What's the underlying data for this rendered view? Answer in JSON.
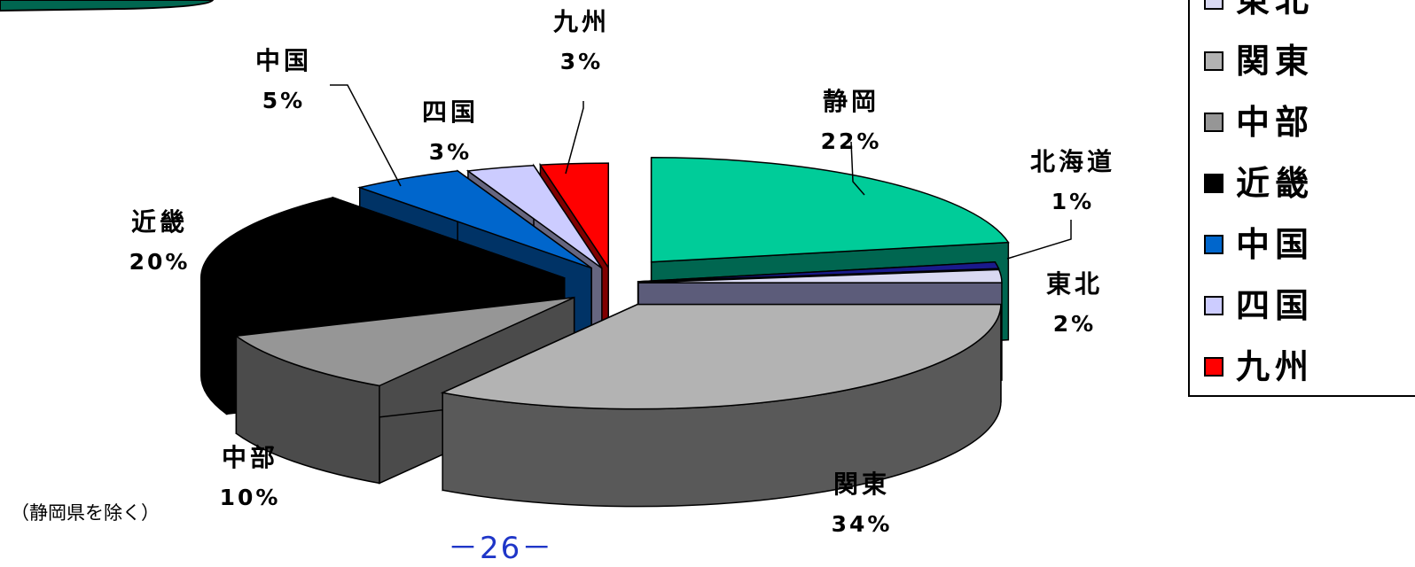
{
  "chart_data": {
    "type": "pie",
    "title": "",
    "slices": [
      {
        "label": "静岡",
        "pct_label": "22%",
        "value": 22,
        "color": "#00cc99",
        "side": "#006650"
      },
      {
        "label": "北海道",
        "pct_label": "1%",
        "value": 1,
        "color": "#1a1a8c",
        "side": "#0d0d55"
      },
      {
        "label": "東北",
        "pct_label": "2%",
        "value": 2,
        "color": "#d9d9f2",
        "side": "#5c5c7a"
      },
      {
        "label": "関東",
        "pct_label": "34%",
        "value": 34,
        "color": "#b3b3b3",
        "side": "#595959"
      },
      {
        "label": "中部",
        "pct_label": "10%",
        "value": 10,
        "color": "#969696",
        "side": "#4b4b4b"
      },
      {
        "label": "近畿",
        "pct_label": "20%",
        "value": 20,
        "color": "#000000",
        "side": "#000000"
      },
      {
        "label": "中国",
        "pct_label": "5%",
        "value": 5,
        "color": "#0066cc",
        "side": "#003366"
      },
      {
        "label": "四国",
        "pct_label": "3%",
        "value": 3,
        "color": "#ccccff",
        "side": "#666680"
      },
      {
        "label": "九州",
        "pct_label": "3%",
        "value": 3,
        "color": "#ff0000",
        "side": "#800000"
      }
    ],
    "legend": [
      {
        "label": "東北",
        "color": "#d9d9f2"
      },
      {
        "label": "関東",
        "color": "#b3b3b3"
      },
      {
        "label": "中部",
        "color": "#969696"
      },
      {
        "label": "近畿",
        "color": "#000000"
      },
      {
        "label": "中国",
        "color": "#0066cc"
      },
      {
        "label": "四国",
        "color": "#ccccff"
      },
      {
        "label": "九州",
        "color": "#ff0000"
      }
    ],
    "legend_position": "right"
  },
  "footnote": "（静岡県を除く）",
  "page_number": "－26－"
}
